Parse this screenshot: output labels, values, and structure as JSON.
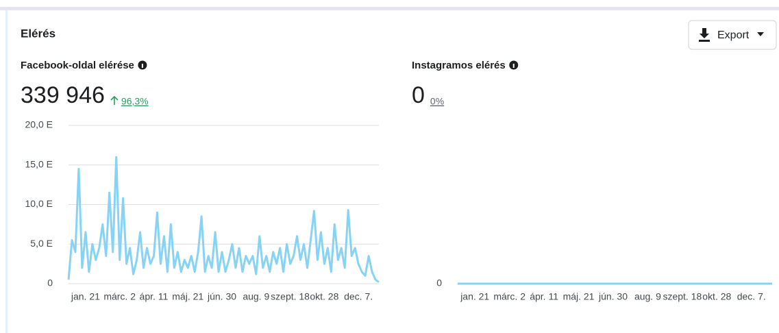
{
  "header": {
    "title": "Elérés",
    "export": "Export"
  },
  "chart_data": [
    {
      "type": "line",
      "title": "Facebook-oldal elérése",
      "total": "339 946",
      "change": "96,3%",
      "color": "#86d3f5",
      "grid": true,
      "categories": [
        null,
        null,
        null,
        null,
        null,
        "jan. 21",
        null,
        null,
        null,
        null,
        null,
        null,
        null,
        null,
        null,
        "márc. 2",
        null,
        null,
        null,
        null,
        null,
        null,
        null,
        null,
        null,
        "ápr. 11",
        null,
        null,
        null,
        null,
        null,
        null,
        null,
        null,
        null,
        "máj. 21",
        null,
        null,
        null,
        null,
        null,
        null,
        null,
        null,
        null,
        "jún. 30",
        null,
        null,
        null,
        null,
        null,
        null,
        null,
        null,
        null,
        "aug. 9",
        null,
        null,
        null,
        null,
        null,
        null,
        null,
        null,
        null,
        "szept. 18",
        null,
        null,
        null,
        null,
        null,
        null,
        null,
        null,
        null,
        "okt. 28",
        null,
        null,
        null,
        null,
        null,
        null,
        null,
        null,
        null,
        "dec. 7.",
        null,
        null,
        null,
        null,
        null,
        null
      ],
      "values": [
        500,
        5500,
        4000,
        14500,
        2000,
        6500,
        1500,
        5000,
        3000,
        4500,
        7500,
        3500,
        11500,
        4000,
        16000,
        3000,
        10800,
        2500,
        4500,
        1200,
        3000,
        6500,
        2000,
        4500,
        2500,
        3500,
        9000,
        2500,
        6000,
        1500,
        7500,
        2000,
        4000,
        1500,
        3000,
        2000,
        3500,
        1500,
        4000,
        8500,
        1500,
        3500,
        2000,
        6500,
        1500,
        4000,
        1500,
        3000,
        5000,
        2000,
        4500,
        1500,
        3500,
        2500,
        3500,
        1200,
        6000,
        2000,
        3500,
        1500,
        4000,
        2500,
        4500,
        1500,
        5000,
        2500,
        3500,
        6000,
        3000,
        5000,
        2000,
        5500,
        9200,
        3000,
        6500,
        2500,
        4500,
        1500,
        7500,
        3000,
        4500,
        2000,
        9300,
        3500,
        4500,
        2500,
        1500,
        1000,
        3500,
        1500,
        500,
        200
      ],
      "ylim": [
        0,
        20000
      ],
      "yticks": [
        0,
        {
          "value": 5000,
          "label": "5,0 E"
        },
        {
          "value": 10000,
          "label": "10,0 E"
        },
        {
          "value": 15000,
          "label": "15,0 E"
        },
        {
          "value": 20000,
          "label": "20,0 E"
        }
      ]
    },
    {
      "type": "line",
      "title": "Instagramos elérés",
      "total": "0",
      "change": "0%",
      "color": "#86d3f5",
      "grid": true,
      "categories": [
        null,
        null,
        null,
        null,
        null,
        "jan. 21",
        null,
        null,
        null,
        null,
        null,
        null,
        null,
        null,
        null,
        "márc. 2",
        null,
        null,
        null,
        null,
        null,
        null,
        null,
        null,
        null,
        "ápr. 11",
        null,
        null,
        null,
        null,
        null,
        null,
        null,
        null,
        null,
        "máj. 21",
        null,
        null,
        null,
        null,
        null,
        null,
        null,
        null,
        null,
        "jún. 30",
        null,
        null,
        null,
        null,
        null,
        null,
        null,
        null,
        null,
        "aug. 9",
        null,
        null,
        null,
        null,
        null,
        null,
        null,
        null,
        null,
        "szept. 18",
        null,
        null,
        null,
        null,
        null,
        null,
        null,
        null,
        null,
        "okt. 28",
        null,
        null,
        null,
        null,
        null,
        null,
        null,
        null,
        null,
        "dec. 7.",
        null,
        null,
        null,
        null,
        null,
        null
      ],
      "values": [
        0,
        0,
        0,
        0,
        0,
        0,
        0,
        0,
        0,
        0,
        0,
        0,
        0,
        0,
        0,
        0,
        0,
        0,
        0,
        0,
        0,
        0,
        0,
        0,
        0,
        0,
        0,
        0,
        0,
        0,
        0,
        0,
        0,
        0,
        0,
        0,
        0,
        0,
        0,
        0,
        0,
        0,
        0,
        0,
        0,
        0,
        0,
        0,
        0,
        0,
        0,
        0,
        0,
        0,
        0,
        0,
        0,
        0,
        0,
        0,
        0,
        0,
        0,
        0,
        0,
        0,
        0,
        0,
        0,
        0,
        0,
        0,
        0,
        0,
        0,
        0,
        0,
        0,
        0,
        0,
        0,
        0,
        0,
        0,
        0,
        0,
        0,
        0,
        0,
        0,
        0,
        0
      ],
      "ylim": [
        0,
        1
      ],
      "yticks": [
        0
      ]
    }
  ]
}
